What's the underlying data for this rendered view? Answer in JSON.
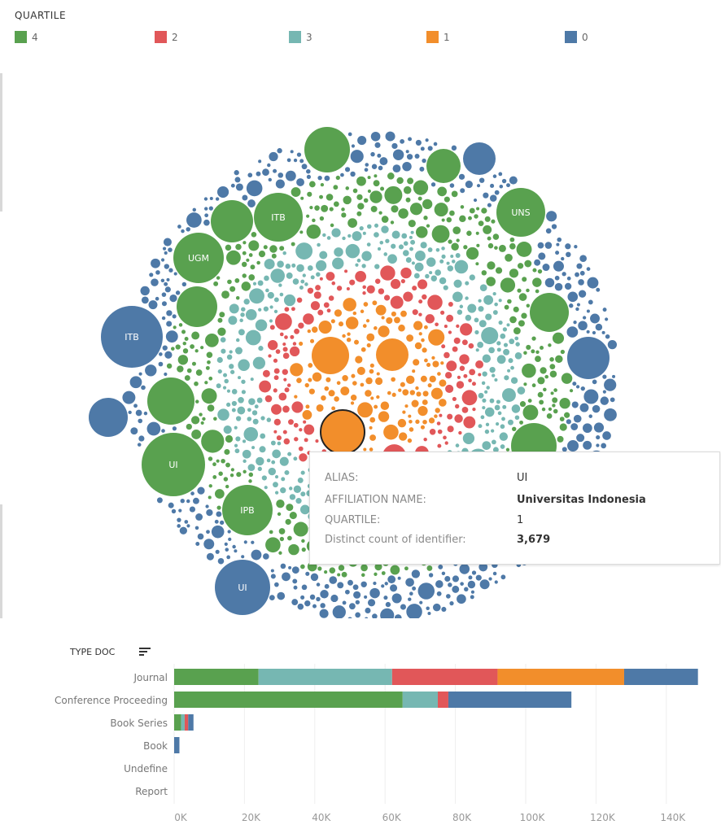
{
  "legend": {
    "title": "QUARTILE",
    "items": [
      {
        "label": "4",
        "color": "#59a14f"
      },
      {
        "label": "2",
        "color": "#e15759"
      },
      {
        "label": "3",
        "color": "#76b7b2"
      },
      {
        "label": "1",
        "color": "#f28e2b"
      },
      {
        "label": "0",
        "color": "#4e79a7"
      }
    ]
  },
  "bubble_labels": [
    "ITB",
    "UNS",
    "UGM",
    "ITB",
    "UI",
    "IPB",
    "UI"
  ],
  "tooltip": {
    "rows": [
      {
        "key": "ALIAS:",
        "value": "UI"
      },
      {
        "key": "AFFILIATION NAME:",
        "value": "Universitas Indonesia"
      },
      {
        "key": "QUARTILE:",
        "value": "1"
      },
      {
        "key": "Distinct count of identifier:",
        "value": "3,679"
      }
    ]
  },
  "chart_data": [
    {
      "type": "bubble",
      "color_by": "QUARTILE",
      "layers_center_to_edge": [
        "1",
        "2",
        "3",
        "4",
        "0"
      ],
      "labeled_bubbles": [
        {
          "label": "ITB",
          "quartile": "4"
        },
        {
          "label": "UNS",
          "quartile": "4"
        },
        {
          "label": "UGM",
          "quartile": "4"
        },
        {
          "label": "ITB",
          "quartile": "0"
        },
        {
          "label": "UI",
          "quartile": "4"
        },
        {
          "label": "IPB",
          "quartile": "4"
        },
        {
          "label": "UI",
          "quartile": "0"
        }
      ],
      "highlighted": {
        "alias": "UI",
        "affiliation": "Universitas Indonesia",
        "quartile": "1",
        "distinct_count": 3679
      }
    },
    {
      "type": "bar",
      "orientation": "horizontal",
      "stacked": true,
      "title": "TYPE DOC",
      "categories": [
        "Journal",
        "Conference Proceeding",
        "Book Series",
        "Book",
        "Undefine",
        "Report"
      ],
      "series": [
        {
          "name": "4",
          "color": "#59a14f",
          "values": [
            24000,
            65000,
            2000,
            0,
            0,
            0
          ]
        },
        {
          "name": "3",
          "color": "#76b7b2",
          "values": [
            38000,
            10000,
            1000,
            0,
            0,
            0
          ]
        },
        {
          "name": "2",
          "color": "#e15759",
          "values": [
            30000,
            3000,
            1000,
            0,
            0,
            0
          ]
        },
        {
          "name": "1",
          "color": "#f28e2b",
          "values": [
            36000,
            0,
            0,
            0,
            0,
            0
          ]
        },
        {
          "name": "0",
          "color": "#4e79a7",
          "values": [
            21000,
            35000,
            1500,
            1500,
            0,
            0
          ]
        }
      ],
      "xticks": [
        "0K",
        "20K",
        "40K",
        "60K",
        "80K",
        "100K",
        "120K",
        "140K"
      ],
      "xlim": [
        0,
        150000
      ],
      "grid": true
    }
  ]
}
